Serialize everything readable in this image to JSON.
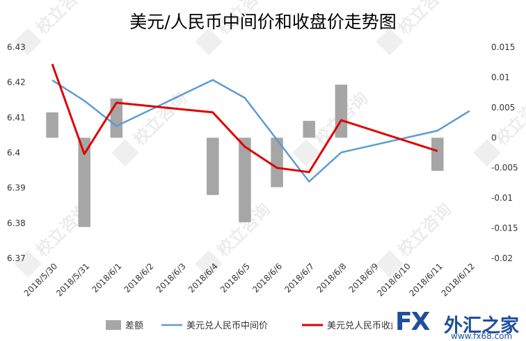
{
  "chart_data": {
    "type": "bar+line",
    "title": "美元/人民币中间价和收盘价走势图",
    "categories": [
      "2018/5/30",
      "2018/5/31",
      "2018/6/1",
      "2018/6/2",
      "2018/6/3",
      "2018/6/4",
      "2018/6/5",
      "2018/6/6",
      "2018/6/7",
      "2018/6/8",
      "2018/6/9",
      "2018/6/10",
      "2018/6/11",
      "2018/6/12"
    ],
    "left_axis": {
      "ylim": [
        6.37,
        6.43
      ],
      "ticks": [
        "6.37",
        "6.38",
        "6.39",
        "6.4",
        "6.41",
        "6.42",
        "6.43"
      ]
    },
    "right_axis": {
      "ylim": [
        -0.02,
        0.015
      ],
      "ticks": [
        "0.015",
        "0.01",
        "0.005",
        "0",
        "-0.005",
        "-0.01",
        "-0.015",
        "-0.02"
      ]
    },
    "series": [
      {
        "name": "差额",
        "type": "bar",
        "axis": "right",
        "color": "#a6a6a6",
        "values": [
          0.0042,
          -0.0148,
          0.0065,
          null,
          null,
          -0.0095,
          -0.014,
          -0.0082,
          0.0028,
          0.0088,
          null,
          null,
          -0.0055,
          null
        ]
      },
      {
        "name": "美元兑人民币中间价",
        "type": "line",
        "axis": "left",
        "color": "#5b9bd5",
        "values": [
          6.4206,
          6.4148,
          6.4076,
          null,
          null,
          6.4207,
          6.4156,
          null,
          6.3918,
          6.4001,
          null,
          null,
          6.4063,
          6.4119
        ]
      },
      {
        "name": "美元兑人民币收盘价",
        "type": "line",
        "axis": "right",
        "color": "#e00000",
        "values": [
          0.0122,
          -0.0027,
          0.0058,
          null,
          null,
          0.0042,
          -0.0015,
          -0.005,
          -0.0057,
          0.0029,
          null,
          null,
          -0.0022,
          null
        ]
      }
    ],
    "legend_position": "bottom",
    "grid": false
  },
  "watermark": {
    "text": "校立咨询"
  },
  "logo": {
    "brand": "FX",
    "name": "外汇之家",
    "url": "www.fx68.com"
  }
}
